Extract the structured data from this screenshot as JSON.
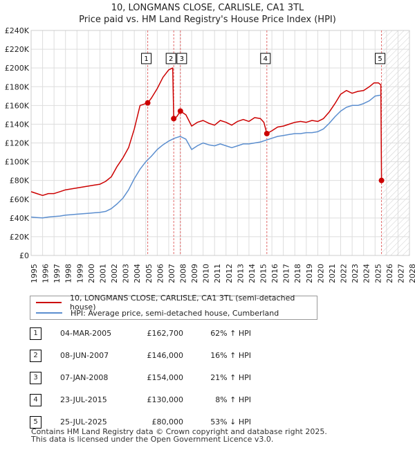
{
  "title_line1": "10, LONGMANS CLOSE, CARLISLE, CA1 3TL",
  "title_line2": "Price paid vs. HM Land Registry's House Price Index (HPI)",
  "colors": {
    "price": "#cc0000",
    "hpi": "#5b8ecf",
    "vline": "#e26b6b",
    "grid": "#dddddd"
  },
  "legend": {
    "price_label": "10, LONGMANS CLOSE, CARLISLE, CA1 3TL (semi-detached house)",
    "hpi_label": "HPI: Average price, semi-detached house, Cumberland"
  },
  "transactions": [
    {
      "num": "1",
      "date": "04-MAR-2005",
      "price": "£162,700",
      "hpi": "62% ↑ HPI"
    },
    {
      "num": "2",
      "date": "08-JUN-2007",
      "price": "£146,000",
      "hpi": "16% ↑ HPI"
    },
    {
      "num": "3",
      "date": "07-JAN-2008",
      "price": "£154,000",
      "hpi": "21% ↑ HPI"
    },
    {
      "num": "4",
      "date": "23-JUL-2015",
      "price": "£130,000",
      "hpi": "8% ↑ HPI"
    },
    {
      "num": "5",
      "date": "25-JUL-2025",
      "price": "£80,000",
      "hpi": "53% ↓ HPI"
    }
  ],
  "footer_line1": "Contains HM Land Registry data © Crown copyright and database right 2025.",
  "footer_line2": "This data is licensed under the Open Government Licence v3.0.",
  "chart_data": {
    "type": "line",
    "xlim": [
      1995,
      2028
    ],
    "ylim": [
      0,
      240000
    ],
    "x_ticks": [
      1995,
      1996,
      1997,
      1998,
      1999,
      2000,
      2001,
      2002,
      2003,
      2004,
      2005,
      2006,
      2007,
      2008,
      2009,
      2010,
      2011,
      2012,
      2013,
      2014,
      2015,
      2016,
      2017,
      2018,
      2019,
      2020,
      2021,
      2022,
      2023,
      2024,
      2025,
      2026,
      2027,
      2028
    ],
    "y_ticks": [
      {
        "value": 0,
        "label": "£0"
      },
      {
        "value": 20000,
        "label": "£20K"
      },
      {
        "value": 40000,
        "label": "£40K"
      },
      {
        "value": 60000,
        "label": "£60K"
      },
      {
        "value": 80000,
        "label": "£80K"
      },
      {
        "value": 100000,
        "label": "£100K"
      },
      {
        "value": 120000,
        "label": "£120K"
      },
      {
        "value": 140000,
        "label": "£140K"
      },
      {
        "value": 160000,
        "label": "£160K"
      },
      {
        "value": 180000,
        "label": "£180K"
      },
      {
        "value": 200000,
        "label": "£200K"
      },
      {
        "value": 220000,
        "label": "£220K"
      },
      {
        "value": 240000,
        "label": "£240K"
      }
    ],
    "hatch_from": 2025.6,
    "series": [
      {
        "name": "10, LONGMANS CLOSE, CARLISLE, CA1 3TL (semi-detached house)",
        "x": [
          1995,
          1995.5,
          1996,
          1996.5,
          1997,
          1997.5,
          1998,
          1998.5,
          1999,
          1999.5,
          2000,
          2000.5,
          2001,
          2001.5,
          2002,
          2002.5,
          2003,
          2003.5,
          2004,
          2004.5,
          2005.17,
          2005.5,
          2006,
          2006.5,
          2007,
          2007.35,
          2007.44,
          2007.7,
          2008.02,
          2008.5,
          2009,
          2009.5,
          2010,
          2010.5,
          2011,
          2011.5,
          2012,
          2012.5,
          2013,
          2013.5,
          2014,
          2014.5,
          2015,
          2015.3,
          2015.56,
          2016,
          2016.5,
          2017,
          2017.5,
          2018,
          2018.5,
          2019,
          2019.5,
          2020,
          2020.5,
          2021,
          2021.5,
          2022,
          2022.5,
          2023,
          2023.5,
          2024,
          2024.5,
          2024.9,
          2025.3,
          2025.5,
          2025.56
        ],
        "y": [
          68000,
          66000,
          64000,
          66000,
          66000,
          68000,
          70000,
          71000,
          72000,
          73000,
          74000,
          75000,
          76000,
          79000,
          84000,
          95000,
          104000,
          115000,
          135000,
          160000,
          162700,
          168000,
          178000,
          190000,
          198000,
          200000,
          146000,
          148000,
          154000,
          150000,
          138000,
          142000,
          144000,
          141000,
          139000,
          144000,
          142000,
          139000,
          143000,
          145000,
          143000,
          147000,
          146000,
          142000,
          130000,
          133000,
          137000,
          138000,
          140000,
          142000,
          143000,
          142000,
          144000,
          143000,
          146000,
          153000,
          162000,
          172000,
          176000,
          173000,
          175000,
          176000,
          180000,
          184000,
          184000,
          182000,
          80000
        ]
      },
      {
        "name": "HPI: Average price, semi-detached house, Cumberland",
        "x": [
          1995,
          1995.5,
          1996,
          1996.5,
          1997,
          1997.5,
          1998,
          1998.5,
          1999,
          1999.5,
          2000,
          2000.5,
          2001,
          2001.5,
          2002,
          2002.5,
          2003,
          2003.5,
          2004,
          2004.5,
          2005,
          2005.5,
          2006,
          2006.5,
          2007,
          2007.5,
          2008,
          2008.5,
          2009,
          2009.5,
          2010,
          2010.5,
          2011,
          2011.5,
          2012,
          2012.5,
          2013,
          2013.5,
          2014,
          2014.5,
          2015,
          2015.5,
          2016,
          2016.5,
          2017,
          2017.5,
          2018,
          2018.5,
          2019,
          2019.5,
          2020,
          2020.5,
          2021,
          2021.5,
          2022,
          2022.5,
          2023,
          2023.5,
          2024,
          2024.5,
          2025,
          2025.5
        ],
        "y": [
          41000,
          40500,
          40000,
          41000,
          41500,
          42000,
          43000,
          43500,
          44000,
          44500,
          45000,
          45500,
          46000,
          47000,
          50000,
          55000,
          61000,
          70000,
          82000,
          92000,
          100000,
          106000,
          113000,
          118000,
          122000,
          125000,
          127000,
          124000,
          113000,
          117000,
          120000,
          118000,
          117000,
          119000,
          117000,
          115000,
          117000,
          119000,
          119000,
          120000,
          121000,
          123000,
          125000,
          127000,
          128000,
          129000,
          130000,
          130000,
          131000,
          131000,
          132000,
          135000,
          141000,
          148000,
          154000,
          158000,
          160000,
          160000,
          162000,
          165000,
          170000,
          171000
        ]
      }
    ],
    "sale_markers": [
      {
        "num": "1",
        "x": 2005.17,
        "y": 162700
      },
      {
        "num": "2",
        "x": 2007.44,
        "y": 146000
      },
      {
        "num": "3",
        "x": 2008.02,
        "y": 154000
      },
      {
        "num": "4",
        "x": 2015.56,
        "y": 130000
      },
      {
        "num": "5",
        "x": 2025.56,
        "y": 80000
      }
    ]
  }
}
